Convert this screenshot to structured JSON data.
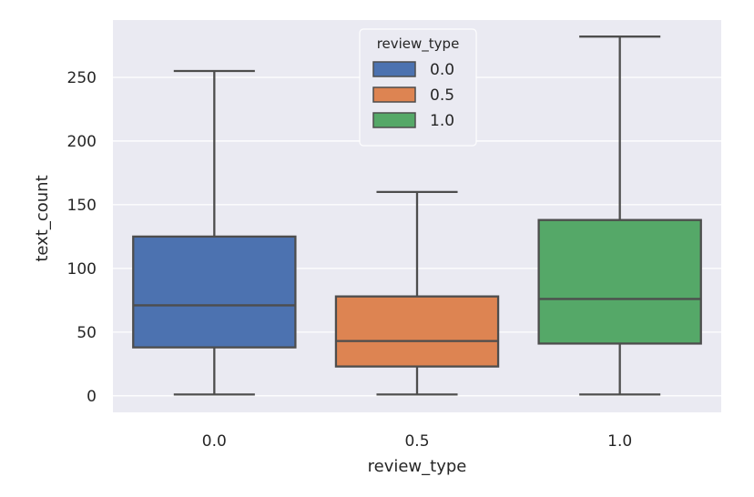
{
  "chart_data": {
    "type": "boxplot",
    "xlabel": "review_type",
    "ylabel": "text_count",
    "categories": [
      "0.0",
      "0.5",
      "1.0"
    ],
    "yticks": [
      "0",
      "50",
      "100",
      "150",
      "200",
      "250"
    ],
    "ylim": [
      -13,
      295
    ],
    "grid": true,
    "legend": {
      "title": "review_type",
      "placement": "top-center",
      "entries": [
        "0.0",
        "0.5",
        "1.0"
      ]
    },
    "series": [
      {
        "name": "0.0",
        "color": "#4c72b0",
        "whisker_low": 1,
        "q1": 38,
        "median": 71,
        "q3": 125,
        "whisker_high": 255
      },
      {
        "name": "0.5",
        "color": "#dd8452",
        "whisker_low": 1,
        "q1": 23,
        "median": 43,
        "q3": 78,
        "whisker_high": 160
      },
      {
        "name": "1.0",
        "color": "#55a868",
        "whisker_low": 1,
        "q1": 41,
        "median": 76,
        "q3": 138,
        "whisker_high": 282
      }
    ]
  }
}
